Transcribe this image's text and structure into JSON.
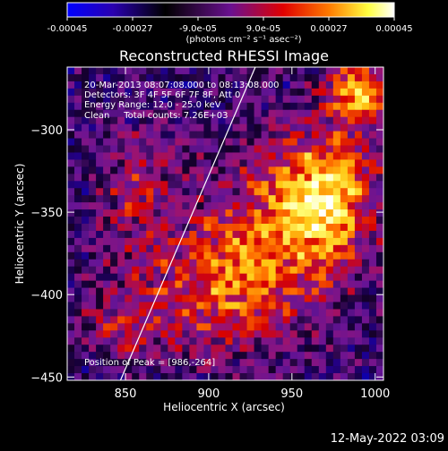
{
  "colorbar": {
    "tick_labels": [
      "-0.00045",
      "-0.00027",
      "-9.0e-05",
      "9.0e-05",
      "0.00027",
      "0.00045"
    ],
    "tick_values": [
      -0.00045,
      -0.00027,
      -9e-05,
      9e-05,
      0.00027,
      0.00045
    ],
    "range": [
      -0.00045,
      0.00045
    ],
    "unit_label": "(photons cm⁻² s⁻¹ asec⁻²)",
    "colors": [
      "#0000ff",
      "#2a00a0",
      "#000000",
      "#7a1090",
      "#e00000",
      "#ff7a00",
      "#ffff66",
      "#ffffff"
    ]
  },
  "chart_data": {
    "type": "heatmap",
    "title": "Reconstructed RHESSI Image",
    "xlabel": "Heliocentric X (arcsec)",
    "ylabel": "Heliocentric Y (arcsec)",
    "xlim": [
      815,
      1005
    ],
    "ylim": [
      -452,
      -262
    ],
    "x_ticks": [
      850,
      900,
      950,
      1000
    ],
    "y_ticks": [
      -300,
      -350,
      -400,
      -450
    ],
    "annotations": [
      "20-Mar-2013 08:07:08.000 to 08:13:08.000",
      "Detectors: 3F 4F 5F 6F 7F 8F, Att 0",
      "Energy Range: 12.0 - 25.0 keV",
      "Clean     Total counts: 7.26E+03"
    ],
    "peak_label": "Position of Peak = [986,-264]",
    "peak_position": [
      986,
      -264
    ],
    "limb_line": [
      [
        847,
        -452
      ],
      [
        928,
        -262
      ]
    ],
    "grid": false
  },
  "footer": {
    "timestamp": "12-May-2022 03:09"
  }
}
